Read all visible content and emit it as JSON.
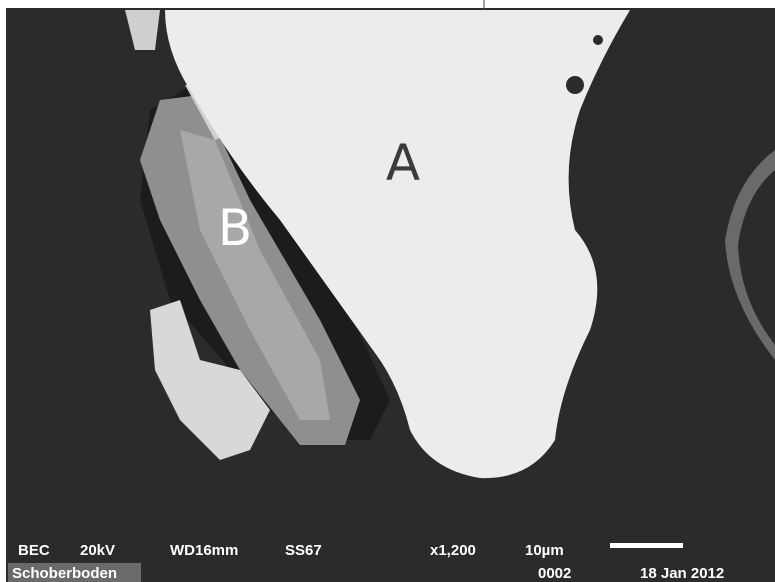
{
  "image_labels": {
    "grain_a": "A",
    "grain_b": "B"
  },
  "info_bar": {
    "detector": "BEC",
    "voltage": "20kV",
    "working_distance": "WD16mm",
    "spot_size": "SS67",
    "magnification": "x1,200",
    "scale": "10µm",
    "image_number": "0002",
    "date": "18 Jan 2012",
    "sample": "Schoberboden"
  }
}
